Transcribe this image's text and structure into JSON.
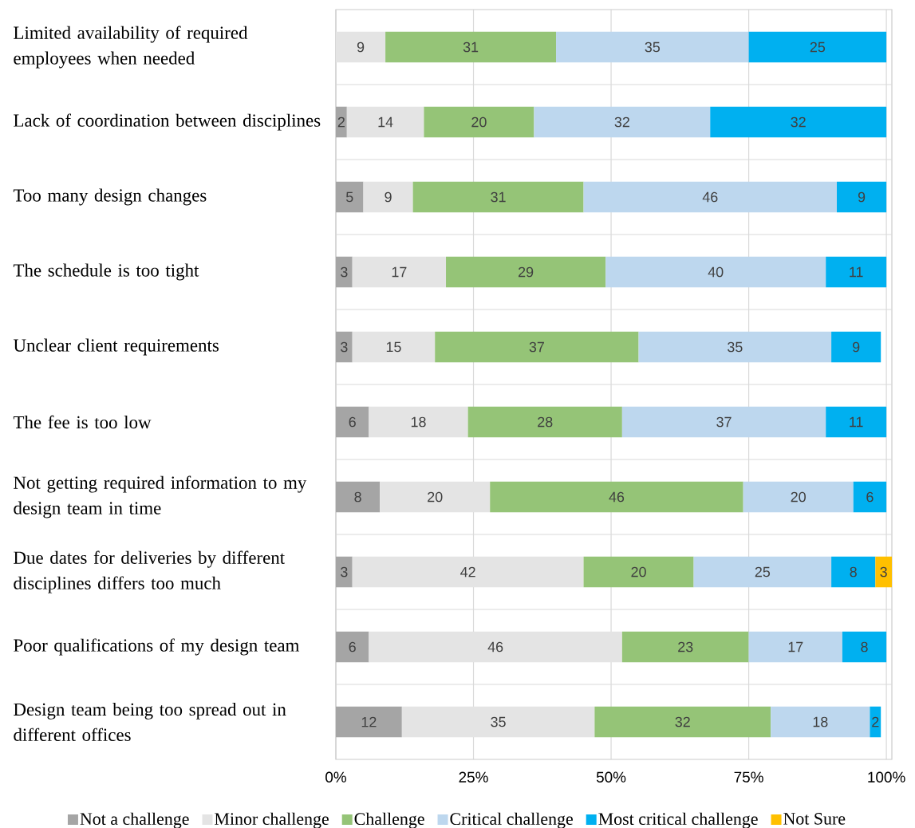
{
  "chart_data": {
    "type": "bar",
    "orientation": "horizontal",
    "stacked": true,
    "data_labels": true,
    "grid": true,
    "legend": "bottom",
    "categories": [
      "Limited availability of required employees when needed",
      "Lack of coordination between disciplines",
      "Too many design changes",
      "The schedule is too tight",
      "Unclear client requirements",
      "The fee is too low",
      "Not getting required information to my design team in time",
      "Due dates for deliveries by different disciplines differs too much",
      "Poor qualifications of my design team",
      "Design team being too spread out in different offices"
    ],
    "xlim": [
      0,
      101
    ],
    "xticks": [
      {
        "value": 0,
        "label": "0%"
      },
      {
        "value": 25,
        "label": "25%"
      },
      {
        "value": 50,
        "label": "50%"
      },
      {
        "value": 75,
        "label": "75%"
      },
      {
        "value": 100,
        "label": "100%"
      }
    ],
    "series": [
      {
        "name": "Not a challenge",
        "color": "#a5a5a5",
        "values": [
          null,
          2,
          5,
          3,
          3,
          6,
          8,
          3,
          6,
          12
        ]
      },
      {
        "name": "Minor challenge",
        "color": "#e4e4e4",
        "values": [
          9,
          14,
          9,
          17,
          15,
          18,
          20,
          42,
          46,
          35
        ]
      },
      {
        "name": "Challenge",
        "color": "#95c477",
        "values": [
          31,
          20,
          31,
          29,
          37,
          28,
          46,
          20,
          23,
          32
        ]
      },
      {
        "name": "Critical challenge",
        "color": "#bdd7ee",
        "values": [
          35,
          32,
          46,
          40,
          35,
          37,
          20,
          25,
          17,
          18
        ]
      },
      {
        "name": "Most critical challenge",
        "color": "#00b0f0",
        "values": [
          25,
          32,
          9,
          11,
          9,
          11,
          6,
          8,
          8,
          2
        ]
      },
      {
        "name": "Not Sure",
        "color": "#ffc000",
        "values": [
          null,
          null,
          null,
          null,
          null,
          null,
          null,
          3,
          null,
          null
        ]
      }
    ]
  }
}
